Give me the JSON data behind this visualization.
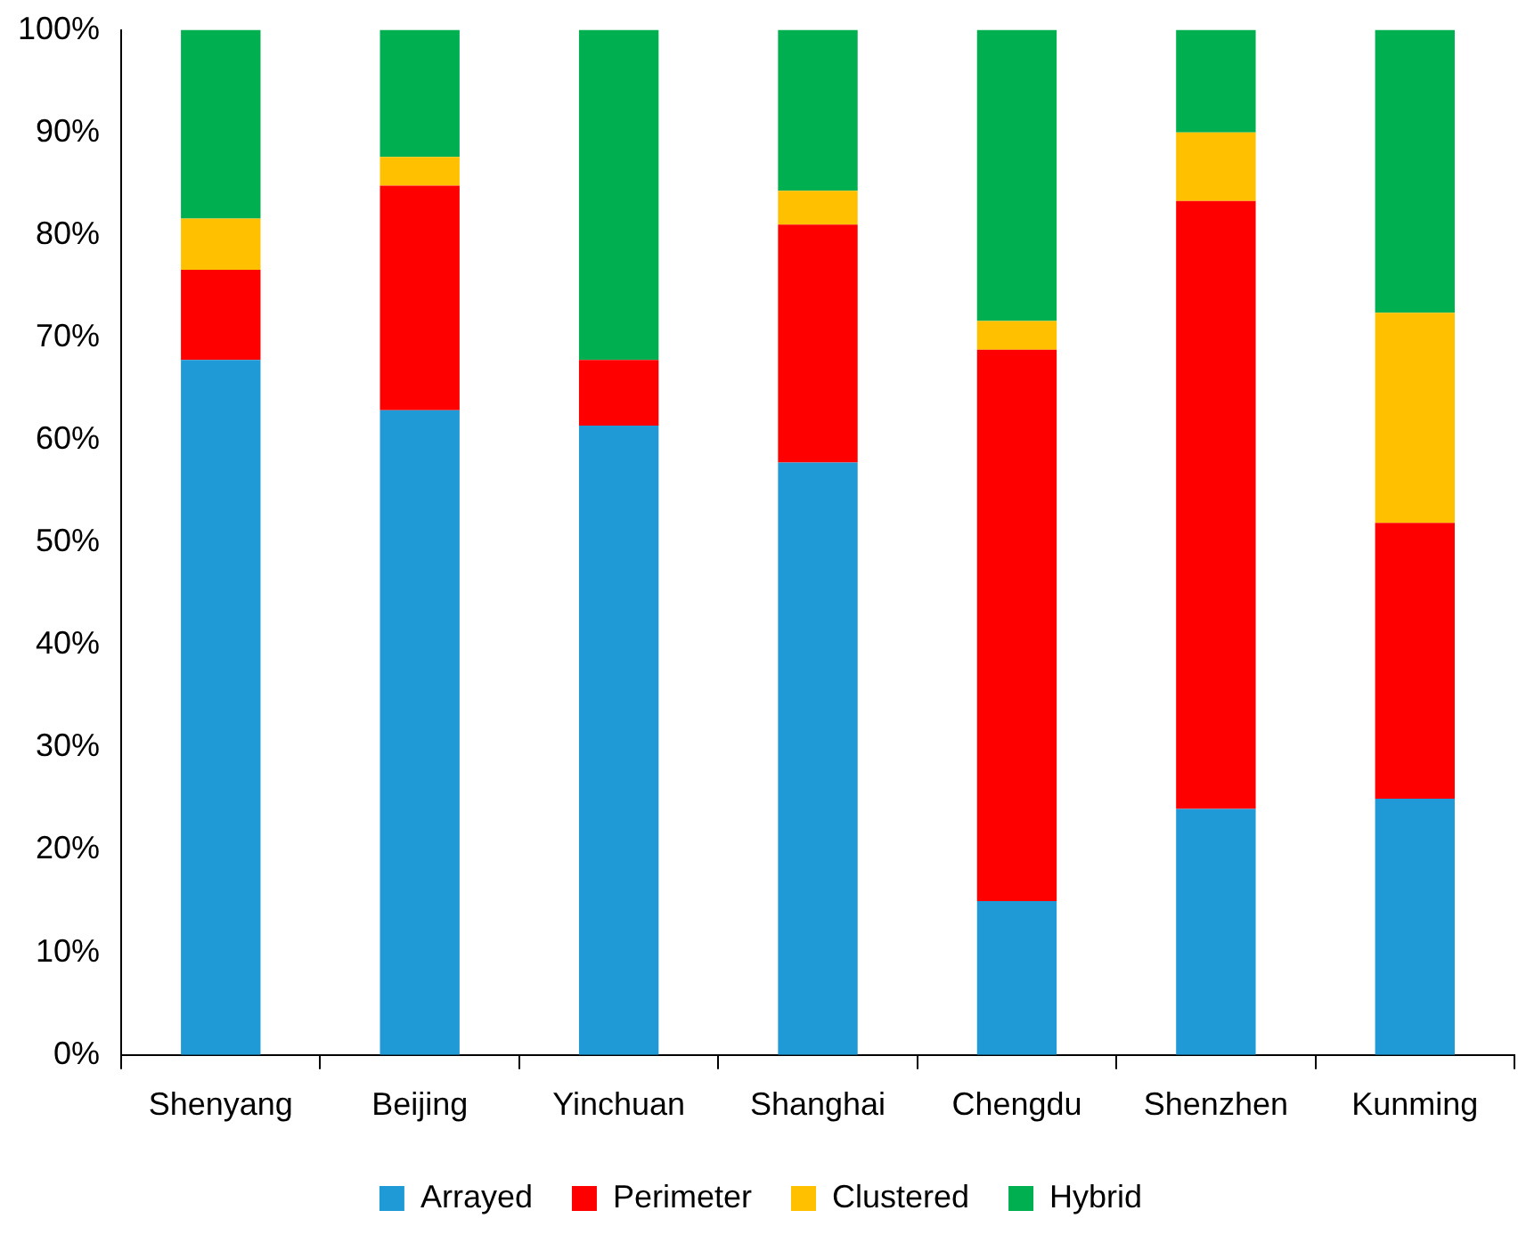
{
  "chart_data": {
    "type": "bar",
    "stacked": true,
    "categories": [
      "Shenyang",
      "Beijing",
      "Yinchuan",
      "Shanghai",
      "Chengdu",
      "Shenzhen",
      "Kunming"
    ],
    "series": [
      {
        "name": "Arrayed",
        "color": "#1f9ad6",
        "values": [
          67.8,
          62.9,
          61.4,
          57.8,
          15.0,
          24.0,
          25.0
        ]
      },
      {
        "name": "Perimeter",
        "color": "#ff0000",
        "values": [
          8.8,
          21.9,
          6.4,
          23.2,
          53.8,
          59.3,
          26.9
        ]
      },
      {
        "name": "Clustered",
        "color": "#ffc000",
        "values": [
          5.0,
          2.8,
          0,
          3.3,
          2.8,
          6.7,
          20.5
        ]
      },
      {
        "name": "Hybrid",
        "color": "#00b050",
        "values": [
          18.4,
          12.4,
          32.2,
          15.7,
          28.4,
          10.0,
          27.6
        ]
      }
    ],
    "ylim": [
      0,
      100
    ],
    "yticks": [
      {
        "value": 0,
        "label": "0%"
      },
      {
        "value": 10,
        "label": "10%"
      },
      {
        "value": 20,
        "label": "20%"
      },
      {
        "value": 30,
        "label": "30%"
      },
      {
        "value": 40,
        "label": "40%"
      },
      {
        "value": 50,
        "label": "50%"
      },
      {
        "value": 60,
        "label": "60%"
      },
      {
        "value": 70,
        "label": "70%"
      },
      {
        "value": 80,
        "label": "80%"
      },
      {
        "value": 90,
        "label": "90%"
      },
      {
        "value": 100,
        "label": "100%"
      }
    ],
    "grid": false,
    "legend": "bottom"
  }
}
